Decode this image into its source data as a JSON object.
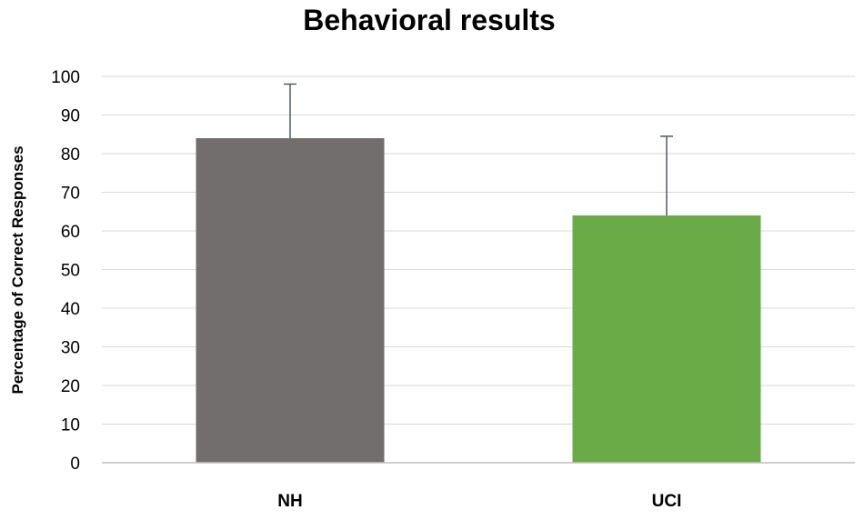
{
  "chart_data": {
    "type": "bar",
    "title": "Behavioral results",
    "ylabel": "Percentage of Correct Responses",
    "xlabel": "",
    "categories": [
      "NH",
      "UCI"
    ],
    "values": [
      84,
      64
    ],
    "error_upper": [
      98,
      84.5
    ],
    "ylim": [
      0,
      100
    ],
    "yticks": [
      0,
      10,
      20,
      30,
      40,
      50,
      60,
      70,
      80,
      90,
      100
    ],
    "grid": true,
    "legend": "none",
    "colors": [
      "#736e6e",
      "#6aab47"
    ],
    "error_bar_color": "#4a5a6a"
  }
}
